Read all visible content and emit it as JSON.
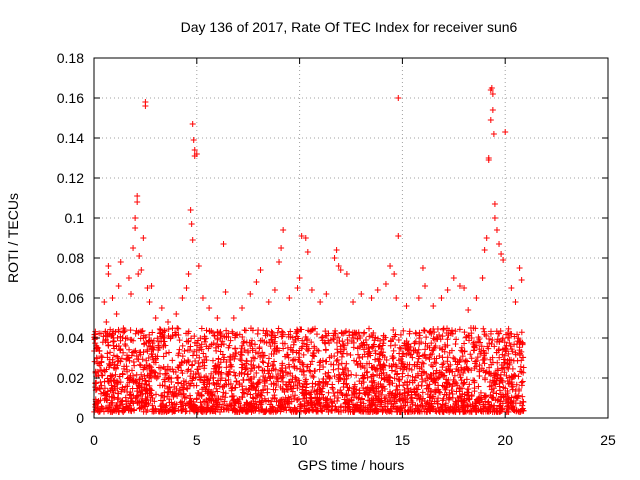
{
  "chart_data": {
    "type": "scatter",
    "title": "Day 136 of 2017, Rate Of TEC Index for receiver sun6",
    "xlabel": "GPS time / hours",
    "ylabel": "ROTI / TECUs",
    "xlim": [
      0,
      25
    ],
    "ylim": [
      0,
      0.18
    ],
    "x_ticks": [
      0,
      5,
      10,
      15,
      20,
      25
    ],
    "y_ticks": [
      0,
      0.02,
      0.04,
      0.06,
      0.08,
      0.1,
      0.12,
      0.14,
      0.16,
      0.18
    ],
    "x_tick_labels": [
      "0",
      "5",
      "10",
      "15",
      "20",
      "25"
    ],
    "y_tick_labels": [
      "0",
      "0.02",
      "0.04",
      "0.06",
      "0.08",
      "0.1",
      "0.12",
      "0.14",
      "0.16",
      "0.18"
    ],
    "grid": true,
    "marker": "plus",
    "colors": {
      "series": "#ff0000",
      "grid": "#a0a0a0",
      "axis": "#000000"
    },
    "series": [
      {
        "values": [
          [
            0.2,
            0.035
          ],
          [
            0.5,
            0.058
          ],
          [
            0.6,
            0.048
          ],
          [
            0.7,
            0.072
          ],
          [
            0.7,
            0.076
          ],
          [
            0.9,
            0.06
          ],
          [
            1.1,
            0.052
          ],
          [
            1.2,
            0.066
          ],
          [
            1.3,
            0.078
          ],
          [
            1.5,
            0.044
          ],
          [
            1.7,
            0.07
          ],
          [
            1.8,
            0.062
          ],
          [
            1.9,
            0.085
          ],
          [
            2.0,
            0.095
          ],
          [
            2.0,
            0.1
          ],
          [
            2.1,
            0.108
          ],
          [
            2.1,
            0.111
          ],
          [
            2.15,
            0.072
          ],
          [
            2.2,
            0.081
          ],
          [
            2.3,
            0.074
          ],
          [
            2.4,
            0.09
          ],
          [
            2.5,
            0.156
          ],
          [
            2.5,
            0.158
          ],
          [
            2.6,
            0.065
          ],
          [
            2.7,
            0.058
          ],
          [
            2.8,
            0.066
          ],
          [
            3.0,
            0.05
          ],
          [
            3.3,
            0.055
          ],
          [
            3.6,
            0.048
          ],
          [
            4.0,
            0.052
          ],
          [
            4.3,
            0.06
          ],
          [
            4.5,
            0.065
          ],
          [
            4.6,
            0.072
          ],
          [
            4.7,
            0.104
          ],
          [
            4.75,
            0.097
          ],
          [
            4.8,
            0.089
          ],
          [
            4.8,
            0.147
          ],
          [
            4.85,
            0.139
          ],
          [
            4.9,
            0.134
          ],
          [
            4.9,
            0.131
          ],
          [
            5.0,
            0.132
          ],
          [
            5.1,
            0.076
          ],
          [
            5.3,
            0.06
          ],
          [
            5.6,
            0.055
          ],
          [
            6.0,
            0.05
          ],
          [
            6.3,
            0.087
          ],
          [
            6.4,
            0.063
          ],
          [
            6.8,
            0.05
          ],
          [
            7.2,
            0.055
          ],
          [
            7.6,
            0.062
          ],
          [
            7.9,
            0.068
          ],
          [
            8.1,
            0.074
          ],
          [
            8.5,
            0.058
          ],
          [
            8.8,
            0.064
          ],
          [
            9.0,
            0.078
          ],
          [
            9.1,
            0.085
          ],
          [
            9.2,
            0.094
          ],
          [
            9.5,
            0.06
          ],
          [
            9.9,
            0.065
          ],
          [
            10.0,
            0.07
          ],
          [
            10.1,
            0.091
          ],
          [
            10.3,
            0.09
          ],
          [
            10.4,
            0.083
          ],
          [
            10.6,
            0.064
          ],
          [
            11.0,
            0.058
          ],
          [
            11.3,
            0.062
          ],
          [
            11.7,
            0.08
          ],
          [
            11.8,
            0.084
          ],
          [
            11.9,
            0.076
          ],
          [
            12.0,
            0.074
          ],
          [
            12.3,
            0.072
          ],
          [
            12.6,
            0.058
          ],
          [
            13.0,
            0.062
          ],
          [
            13.5,
            0.06
          ],
          [
            13.8,
            0.064
          ],
          [
            14.2,
            0.067
          ],
          [
            14.4,
            0.076
          ],
          [
            14.6,
            0.072
          ],
          [
            14.7,
            0.06
          ],
          [
            14.8,
            0.091
          ],
          [
            14.8,
            0.16
          ],
          [
            15.2,
            0.056
          ],
          [
            15.8,
            0.06
          ],
          [
            16.0,
            0.075
          ],
          [
            16.1,
            0.066
          ],
          [
            16.5,
            0.056
          ],
          [
            16.9,
            0.06
          ],
          [
            17.2,
            0.064
          ],
          [
            17.5,
            0.07
          ],
          [
            17.8,
            0.066
          ],
          [
            18.0,
            0.065
          ],
          [
            18.2,
            0.054
          ],
          [
            18.6,
            0.06
          ],
          [
            18.9,
            0.07
          ],
          [
            19.0,
            0.084
          ],
          [
            19.1,
            0.09
          ],
          [
            19.2,
            0.129
          ],
          [
            19.2,
            0.13
          ],
          [
            19.3,
            0.149
          ],
          [
            19.3,
            0.164
          ],
          [
            19.35,
            0.165
          ],
          [
            19.4,
            0.162
          ],
          [
            19.4,
            0.154
          ],
          [
            19.45,
            0.142
          ],
          [
            19.5,
            0.107
          ],
          [
            19.5,
            0.1
          ],
          [
            19.6,
            0.094
          ],
          [
            19.7,
            0.087
          ],
          [
            19.8,
            0.082
          ],
          [
            19.9,
            0.079
          ],
          [
            20.0,
            0.143
          ],
          [
            20.3,
            0.065
          ],
          [
            20.5,
            0.058
          ],
          [
            20.7,
            0.075
          ],
          [
            20.8,
            0.069
          ]
        ]
      }
    ],
    "dense_band": {
      "x_range": [
        0,
        20.9
      ],
      "y_range": [
        0.003,
        0.045
      ],
      "note": ""
    }
  }
}
